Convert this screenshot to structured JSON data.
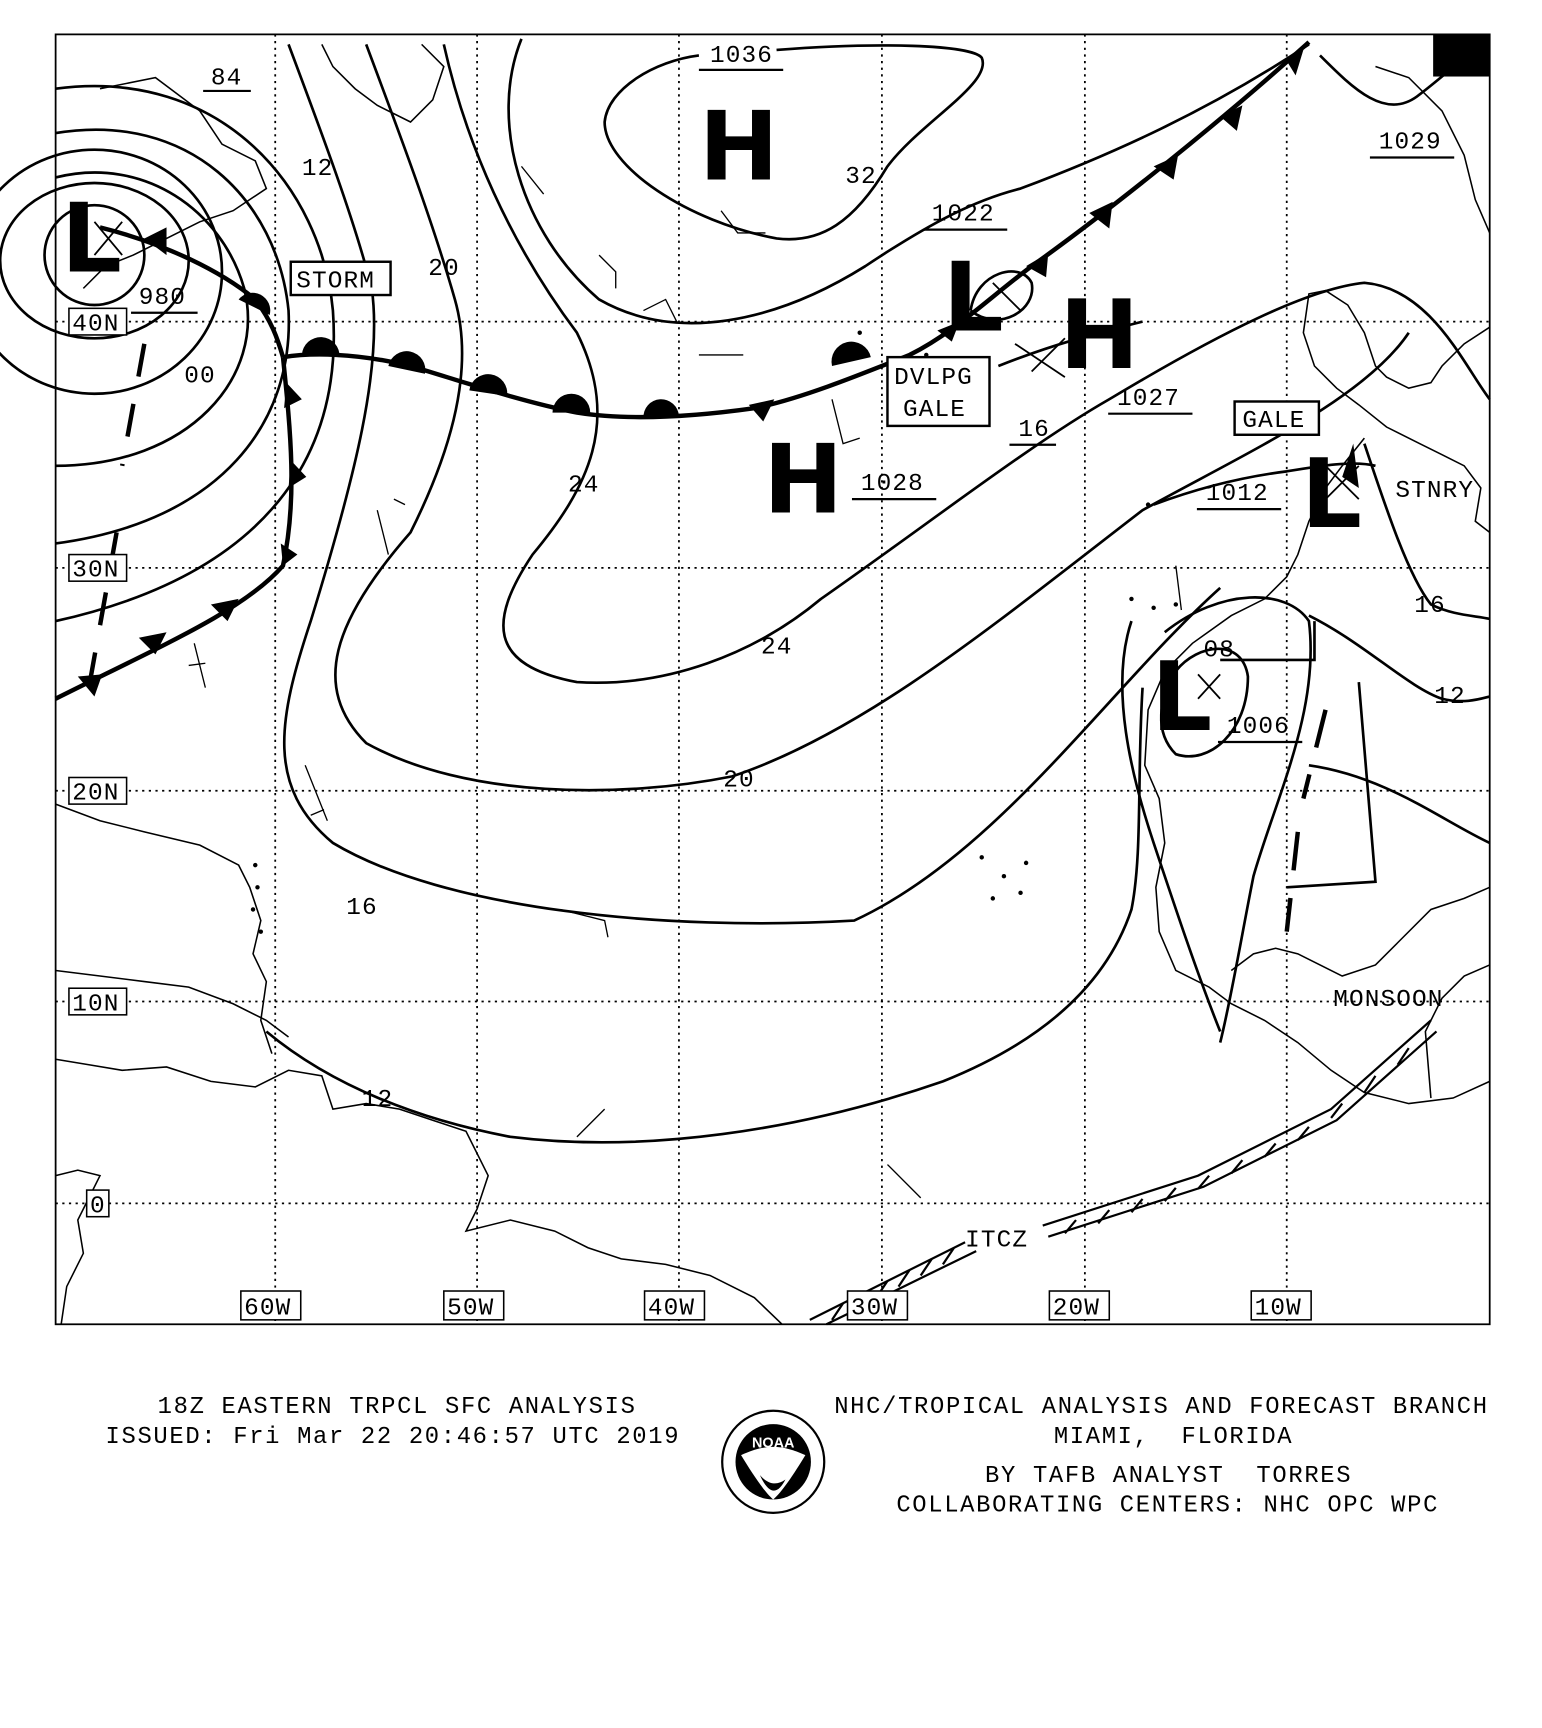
{
  "map": {
    "latitude_labels": [
      "40N",
      "30N",
      "20N",
      "10N",
      "0"
    ],
    "longitude_labels": [
      "60W",
      "50W",
      "40W",
      "30W",
      "20W",
      "10W"
    ],
    "isobar_labels": [
      "84",
      "12",
      "20",
      "980",
      "00",
      "24",
      "1036",
      "32",
      "1022",
      "1028",
      "16",
      "1027",
      "1012",
      "24",
      "20",
      "16",
      "12",
      "08",
      "1006",
      "16",
      "12",
      "1029"
    ],
    "pressure_centers": [
      {
        "type": "L",
        "value": "980"
      },
      {
        "type": "H",
        "value": "1036"
      },
      {
        "type": "H",
        "value": "1028"
      },
      {
        "type": "L",
        "value": "1022"
      },
      {
        "type": "H",
        "value": "1027"
      },
      {
        "type": "L",
        "value": "1012"
      },
      {
        "type": "L",
        "value": "1006"
      },
      {
        "type": "H",
        "value": "1029"
      }
    ],
    "warnings": [
      "STORM",
      "DVLPG",
      "GALE",
      "GALE"
    ],
    "feature_labels": {
      "stationary": "STNRY",
      "monsoon": "MONSOON",
      "itcz": "ITCZ"
    }
  },
  "footer": {
    "title": "18Z EASTERN TRPCL SFC ANALYSIS",
    "issued": "ISSUED: Fri Mar 22 20:46:57 UTC 2019",
    "branch": "NHC/TROPICAL ANALYSIS AND FORECAST BRANCH",
    "location": "MIAMI,  FLORIDA",
    "analyst": "BY TAFB ANALYST  TORRES",
    "collab": "COLLABORATING CENTERS: NHC OPC WPC",
    "logo_text": "NOAA"
  }
}
